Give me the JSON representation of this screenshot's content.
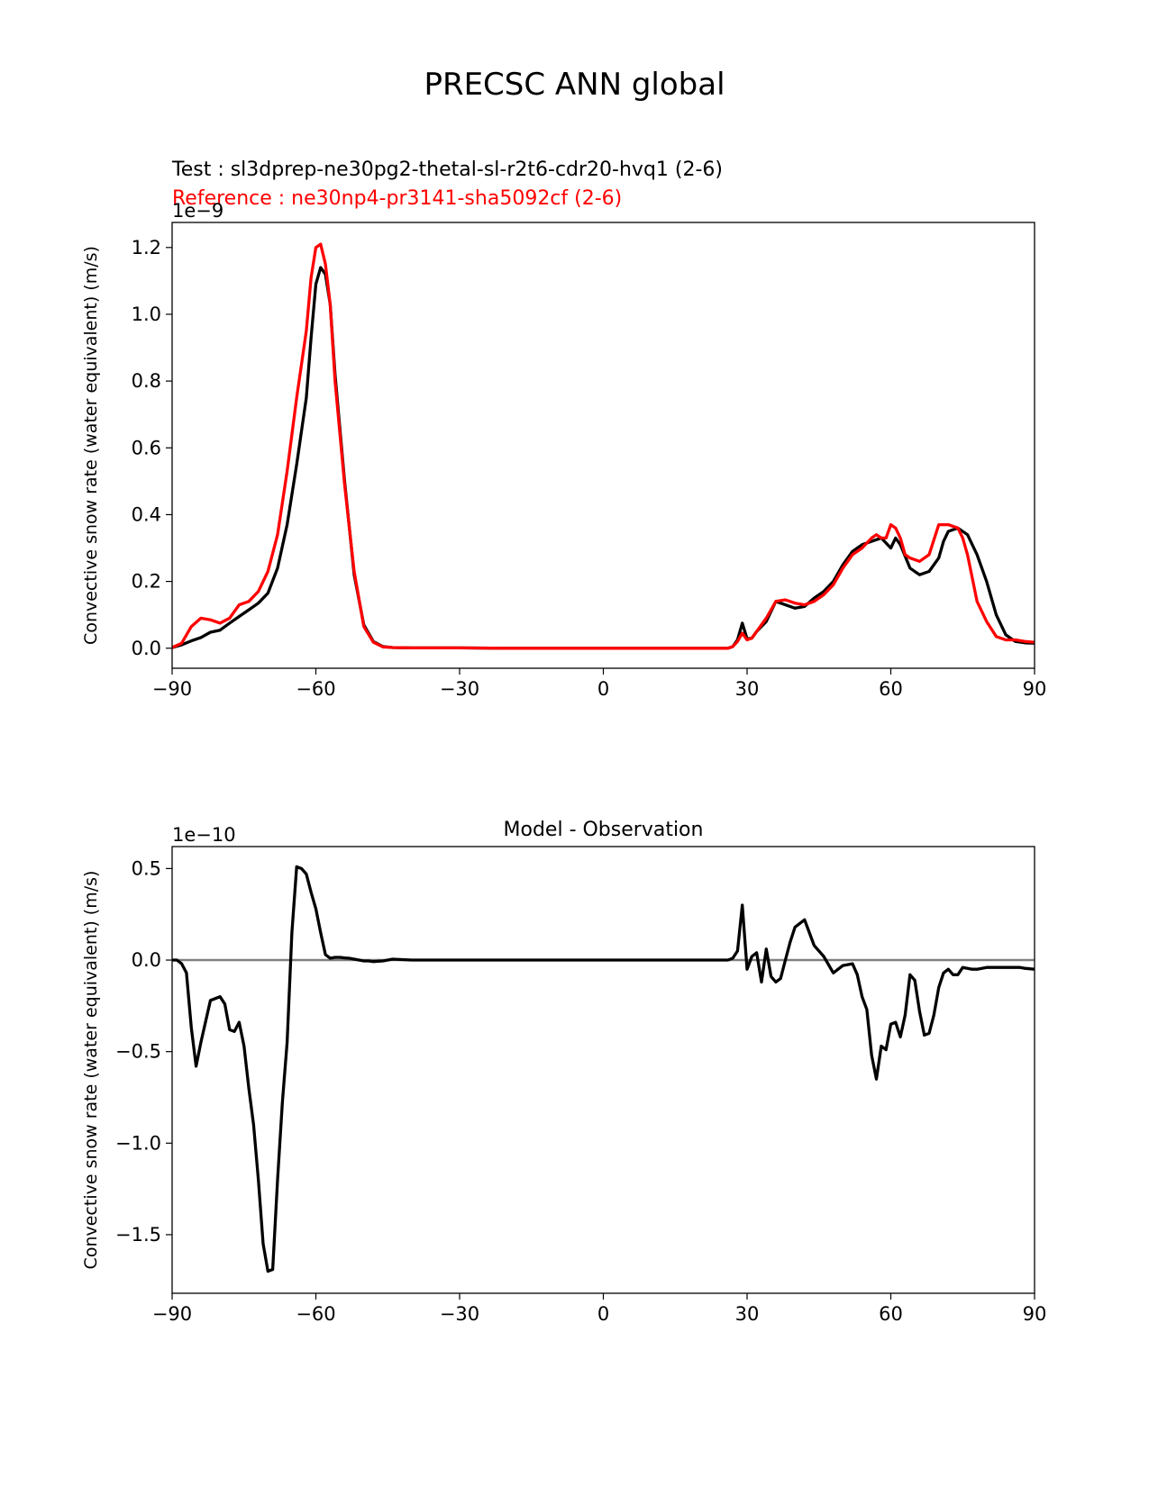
{
  "figure": {
    "title": "PRECSC ANN global",
    "test_label": "Test : sl3dprep-ne30pg2-thetal-sl-r2t6-cdr20-hvq1 (2-6)",
    "reference_label": "Reference : ne30np4-pr3141-sha5092cf (2-6)"
  },
  "colors": {
    "test": "#000000",
    "reference": "#ff0000",
    "zero_line": "#808080"
  },
  "chart_data": [
    {
      "type": "line",
      "title": "",
      "xlabel": "",
      "ylabel": "Convective snow rate (water equivalent) (m/s)",
      "offset_label": "1e−9",
      "xlim": [
        -90,
        90
      ],
      "ylim": [
        -0.06,
        1.275
      ],
      "xticks": [
        -90,
        -60,
        -30,
        0,
        30,
        60,
        90
      ],
      "xtick_labels": [
        "−90",
        "−60",
        "−30",
        "0",
        "30",
        "60",
        "90"
      ],
      "yticks": [
        0.0,
        0.2,
        0.4,
        0.6,
        0.8,
        1.0,
        1.2
      ],
      "ytick_labels": [
        "0.0",
        "0.2",
        "0.4",
        "0.6",
        "0.8",
        "1.0",
        "1.2"
      ],
      "series": [
        {
          "name": "Test : sl3dprep-ne30pg2-thetal-sl-r2t6-cdr20-hvq1 (2-6)",
          "color": "#000000",
          "x": [
            -90,
            -88,
            -86,
            -84,
            -82,
            -80,
            -78,
            -76,
            -74,
            -72,
            -70,
            -68,
            -66,
            -64,
            -62,
            -61,
            -60,
            -59,
            -58,
            -57,
            -56,
            -54,
            -52,
            -50,
            -48,
            -46,
            -44,
            -40,
            -30,
            -20,
            0,
            20,
            26,
            27,
            28,
            29,
            30,
            31,
            32,
            34,
            36,
            38,
            40,
            42,
            44,
            46,
            48,
            50,
            52,
            54,
            56,
            58,
            60,
            61,
            62,
            64,
            66,
            68,
            70,
            71,
            72,
            74,
            76,
            78,
            80,
            82,
            84,
            86,
            88,
            90
          ],
          "y": [
            0.002,
            0.01,
            0.022,
            0.032,
            0.048,
            0.054,
            0.075,
            0.095,
            0.115,
            0.135,
            0.165,
            0.24,
            0.37,
            0.55,
            0.75,
            0.93,
            1.09,
            1.14,
            1.12,
            1.03,
            0.82,
            0.5,
            0.22,
            0.07,
            0.02,
            0.005,
            0.002,
            0.001,
            0.001,
            0.0,
            0.0,
            0.0,
            0.0,
            0.005,
            0.025,
            0.075,
            0.028,
            0.03,
            0.05,
            0.08,
            0.14,
            0.13,
            0.12,
            0.125,
            0.15,
            0.17,
            0.2,
            0.25,
            0.29,
            0.31,
            0.32,
            0.33,
            0.3,
            0.33,
            0.31,
            0.24,
            0.22,
            0.23,
            0.27,
            0.32,
            0.35,
            0.36,
            0.34,
            0.28,
            0.2,
            0.1,
            0.04,
            0.02,
            0.016,
            0.015
          ]
        },
        {
          "name": "Reference : ne30np4-pr3141-sha5092cf (2-6)",
          "color": "#ff0000",
          "x": [
            -90,
            -88,
            -86,
            -84,
            -82,
            -80,
            -78,
            -76,
            -74,
            -72,
            -70,
            -68,
            -66,
            -64,
            -62,
            -61,
            -60,
            -59,
            -58,
            -57,
            -56,
            -54,
            -52,
            -50,
            -48,
            -46,
            -44,
            -40,
            -30,
            -20,
            0,
            20,
            26,
            27,
            28,
            29,
            30,
            31,
            32,
            34,
            36,
            38,
            40,
            42,
            44,
            46,
            48,
            50,
            52,
            54,
            56,
            57,
            58,
            59,
            60,
            61,
            62,
            63,
            64,
            66,
            68,
            70,
            72,
            74,
            75,
            76,
            78,
            80,
            82,
            84,
            86,
            88,
            90
          ],
          "y": [
            0.002,
            0.015,
            0.065,
            0.09,
            0.085,
            0.075,
            0.09,
            0.13,
            0.14,
            0.17,
            0.23,
            0.34,
            0.53,
            0.75,
            0.95,
            1.11,
            1.2,
            1.21,
            1.15,
            1.03,
            0.8,
            0.49,
            0.23,
            0.065,
            0.018,
            0.004,
            0.002,
            0.001,
            0.001,
            0.0,
            0.0,
            0.0,
            0.0,
            0.005,
            0.02,
            0.045,
            0.025,
            0.03,
            0.05,
            0.09,
            0.14,
            0.145,
            0.135,
            0.13,
            0.14,
            0.16,
            0.19,
            0.24,
            0.28,
            0.3,
            0.33,
            0.34,
            0.33,
            0.33,
            0.37,
            0.36,
            0.33,
            0.28,
            0.27,
            0.26,
            0.28,
            0.37,
            0.37,
            0.36,
            0.33,
            0.28,
            0.14,
            0.08,
            0.035,
            0.025,
            0.025,
            0.02,
            0.018
          ]
        }
      ]
    },
    {
      "type": "line",
      "title": "Model - Observation",
      "xlabel": "",
      "ylabel": "Convective snow rate (water equivalent) (m/s)",
      "offset_label": "1e−10",
      "xlim": [
        -90,
        90
      ],
      "ylim": [
        -1.82,
        0.62
      ],
      "xticks": [
        -90,
        -60,
        -30,
        0,
        30,
        60,
        90
      ],
      "xtick_labels": [
        "−90",
        "−60",
        "−30",
        "0",
        "30",
        "60",
        "90"
      ],
      "yticks": [
        -1.5,
        -1.0,
        -0.5,
        0.0,
        0.5
      ],
      "ytick_labels": [
        "−1.5",
        "−1.0",
        "−0.5",
        "0.0",
        "0.5"
      ],
      "zero_line": 0.0,
      "series": [
        {
          "name": "",
          "color": "#000000",
          "x": [
            -90,
            -89,
            -88,
            -87,
            -86,
            -85,
            -84,
            -82,
            -80,
            -79,
            -78,
            -77,
            -76,
            -75,
            -74,
            -73,
            -72,
            -71,
            -70,
            -69,
            -68,
            -67,
            -66,
            -65,
            -64,
            -63,
            -62,
            -61,
            -60,
            -59,
            -58,
            -57,
            -56,
            -55,
            -54,
            -53,
            -52,
            -51,
            -50,
            -49,
            -48,
            -46,
            -44,
            -40,
            -36,
            -34,
            -32,
            -30,
            -28,
            -24,
            -20,
            -10,
            0,
            10,
            20,
            24,
            26,
            27,
            28,
            29,
            30,
            31,
            32,
            33,
            34,
            35,
            36,
            37,
            38,
            39,
            40,
            42,
            43,
            44,
            46,
            48,
            50,
            52,
            53,
            54,
            55,
            56,
            57,
            58,
            59,
            60,
            61,
            62,
            63,
            64,
            65,
            66,
            67,
            68,
            69,
            70,
            71,
            72,
            73,
            74,
            75,
            76,
            77,
            78,
            79,
            80,
            81,
            82,
            83,
            84,
            85,
            86,
            87,
            88,
            90
          ],
          "y": [
            0.0,
            0.0,
            -0.02,
            -0.07,
            -0.37,
            -0.58,
            -0.45,
            -0.22,
            -0.2,
            -0.24,
            -0.38,
            -0.39,
            -0.34,
            -0.47,
            -0.7,
            -0.9,
            -1.2,
            -1.55,
            -1.7,
            -1.69,
            -1.2,
            -0.78,
            -0.45,
            0.15,
            0.51,
            0.5,
            0.47,
            0.37,
            0.28,
            0.15,
            0.03,
            0.01,
            0.015,
            0.015,
            0.012,
            0.01,
            0.005,
            0.0,
            -0.005,
            -0.005,
            -0.008,
            -0.005,
            0.005,
            0.0,
            0.0,
            0.0,
            0.0,
            0.0,
            0.0,
            0.0,
            0.0,
            0.0,
            0.0,
            0.0,
            0.0,
            0.0,
            0.0,
            0.01,
            0.05,
            0.3,
            -0.05,
            0.02,
            0.04,
            -0.12,
            0.06,
            -0.09,
            -0.12,
            -0.1,
            0.0,
            0.1,
            0.18,
            0.22,
            0.15,
            0.08,
            0.02,
            -0.07,
            -0.03,
            -0.02,
            -0.08,
            -0.2,
            -0.27,
            -0.52,
            -0.65,
            -0.47,
            -0.49,
            -0.35,
            -0.34,
            -0.42,
            -0.3,
            -0.08,
            -0.11,
            -0.28,
            -0.41,
            -0.4,
            -0.3,
            -0.15,
            -0.07,
            -0.05,
            -0.08,
            -0.08,
            -0.04,
            -0.045,
            -0.05,
            -0.05,
            -0.045,
            -0.04,
            -0.04,
            -0.04,
            -0.04,
            -0.04,
            -0.04,
            -0.04,
            -0.04,
            -0.045,
            -0.05
          ]
        }
      ]
    }
  ]
}
